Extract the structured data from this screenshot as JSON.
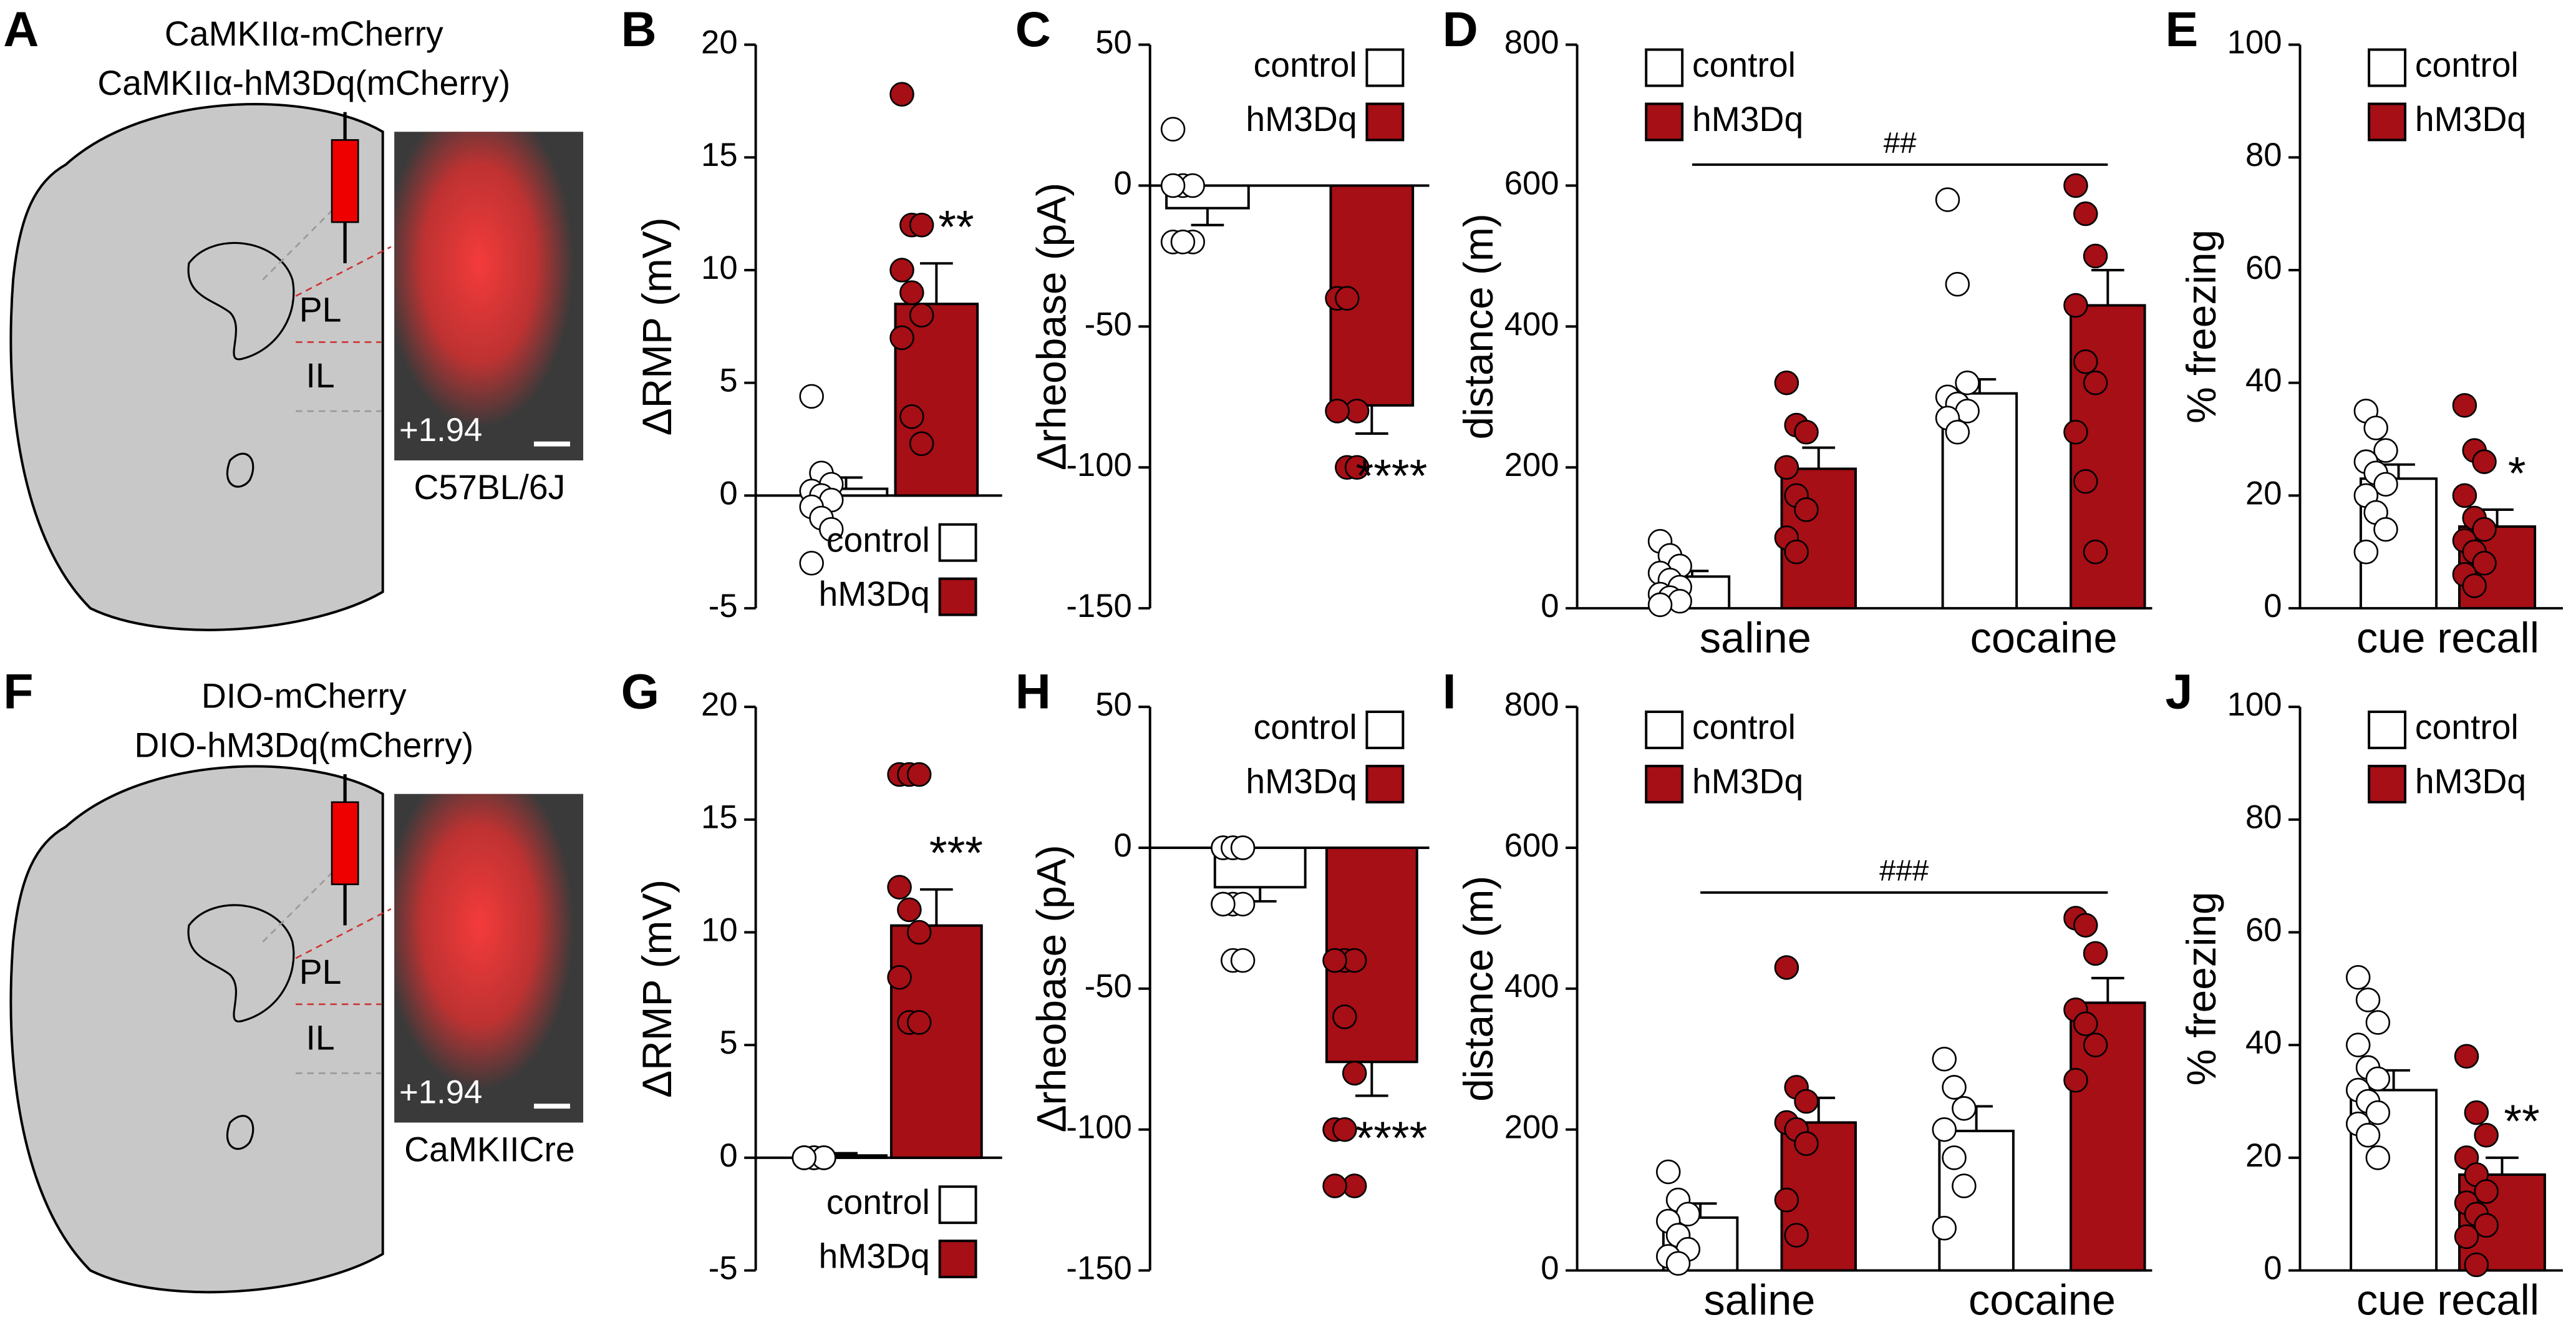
{
  "panels": [
    {
      "letter": "A",
      "lines": [
        "CaMKIIα-mCherry",
        "CaMKIIα-hM3Dq(mCherry)"
      ],
      "regions": [
        "PL",
        "IL"
      ],
      "coordinate": "+1.94",
      "strain": "C57BL/6J"
    },
    {
      "letter": "F",
      "lines": [
        "DIO-mCherry",
        "DIO-hM3Dq(mCherry)"
      ],
      "regions": [
        "PL",
        "IL"
      ],
      "coordinate": "+1.94",
      "strain": "CaMKIICre"
    }
  ],
  "chart_data": [
    {
      "type": "bar",
      "panel": "B",
      "ylabel": "ΔRMP (mV)",
      "ylim": [
        -5,
        20
      ],
      "yticks": [
        -5,
        0,
        5,
        10,
        15,
        20
      ],
      "legend": "lower right",
      "series": [
        {
          "name": "control",
          "color": "#ffffff",
          "values": [
            0.3
          ],
          "errors": [
            0.5
          ],
          "points": [
            [
              4.4,
              1,
              0.5,
              0.2,
              0,
              -0.2,
              -0.5,
              -1,
              -1.5,
              -3
            ]
          ]
        },
        {
          "name": "hM3Dq",
          "color": "#a50f15",
          "values": [
            8.5
          ],
          "errors": [
            1.8
          ],
          "points": [
            [
              17.8,
              12,
              12,
              10,
              9,
              8,
              7,
              3.5,
              2.3
            ]
          ],
          "significance": "**"
        }
      ]
    },
    {
      "type": "bar",
      "panel": "C",
      "ylabel": "Δrheobase (pA)",
      "ylim": [
        -150,
        50
      ],
      "yticks": [
        -150,
        -100,
        -50,
        0,
        50
      ],
      "legend": "upper right",
      "series": [
        {
          "name": "control",
          "color": "#ffffff",
          "values": [
            -8
          ],
          "errors": [
            6
          ],
          "points": [
            [
              20,
              0,
              0,
              0,
              -20,
              -20,
              -20,
              -20
            ]
          ]
        },
        {
          "name": "hM3Dq",
          "color": "#a50f15",
          "values": [
            -78
          ],
          "errors": [
            10
          ],
          "points": [
            [
              -40,
              -40,
              -80,
              -80,
              -100,
              -100
            ]
          ],
          "significance": "****"
        }
      ]
    },
    {
      "type": "bar",
      "panel": "D",
      "ylabel": "distance (m)",
      "ylim": [
        0,
        800
      ],
      "yticks": [
        0,
        200,
        400,
        600,
        800
      ],
      "legend": "upper left",
      "categories": [
        "saline",
        "cocaine"
      ],
      "bracket": "##",
      "series": [
        {
          "name": "control",
          "color": "#ffffff",
          "values": [
            45,
            305
          ],
          "errors": [
            8,
            20
          ],
          "points": [
            [
              95,
              75,
              60,
              50,
              40,
              30,
              20,
              15,
              10,
              5
            ],
            [
              580,
              460,
              320,
              300,
              290,
              280,
              270,
              250
            ]
          ]
        },
        {
          "name": "hM3Dq",
          "color": "#a50f15",
          "values": [
            198,
            430
          ],
          "errors": [
            30,
            50
          ],
          "points": [
            [
              320,
              260,
              250,
              200,
              160,
              140,
              100,
              80
            ],
            [
              600,
              560,
              500,
              430,
              350,
              320,
              250,
              180,
              80
            ]
          ]
        }
      ]
    },
    {
      "type": "bar",
      "panel": "E",
      "ylabel": "% freezing",
      "ylim": [
        0,
        100
      ],
      "yticks": [
        0,
        20,
        40,
        60,
        80,
        100
      ],
      "legend": "upper left",
      "categories": [
        "cue recall"
      ],
      "series": [
        {
          "name": "control",
          "color": "#ffffff",
          "values": [
            23
          ],
          "errors": [
            2.5
          ],
          "points": [
            [
              35,
              32,
              28,
              26,
              24,
              22,
              20,
              17,
              14,
              10
            ]
          ]
        },
        {
          "name": "hM3Dq",
          "color": "#a50f15",
          "values": [
            14.5
          ],
          "errors": [
            3
          ],
          "points": [
            [
              36,
              28,
              26,
              20,
              16,
              14,
              12,
              10,
              8,
              6,
              4
            ]
          ],
          "significance": "*"
        }
      ]
    },
    {
      "type": "bar",
      "panel": "G",
      "ylabel": "ΔRMP (mV)",
      "ylim": [
        -5,
        20
      ],
      "yticks": [
        -5,
        0,
        5,
        10,
        15,
        20
      ],
      "legend": "lower right",
      "series": [
        {
          "name": "control",
          "color": "#ffffff",
          "values": [
            0.1
          ],
          "errors": [
            0.1
          ],
          "points": [
            [
              0,
              0,
              0,
              0,
              0,
              0,
              0,
              0,
              0,
              0
            ]
          ]
        },
        {
          "name": "hM3Dq",
          "color": "#a50f15",
          "values": [
            10.3
          ],
          "errors": [
            1.6
          ],
          "points": [
            [
              17,
              17,
              17,
              12,
              11,
              10,
              8,
              6,
              6
            ]
          ],
          "significance": "***"
        }
      ]
    },
    {
      "type": "bar",
      "panel": "H",
      "ylabel": "Δrheobase (pA)",
      "ylim": [
        -150,
        50
      ],
      "yticks": [
        -150,
        -100,
        -50,
        0,
        50
      ],
      "legend": "upper right",
      "series": [
        {
          "name": "control",
          "color": "#ffffff",
          "values": [
            -14
          ],
          "errors": [
            5
          ],
          "points": [
            [
              0,
              0,
              0,
              0,
              0,
              0,
              -20,
              -20,
              -20,
              -20,
              -40,
              -40
            ]
          ]
        },
        {
          "name": "hM3Dq",
          "color": "#a50f15",
          "values": [
            -76
          ],
          "errors": [
            12
          ],
          "points": [
            [
              -40,
              -40,
              -40,
              -40,
              -60,
              -80,
              -100,
              -100,
              -120,
              -120
            ]
          ],
          "significance": "****"
        }
      ]
    },
    {
      "type": "bar",
      "panel": "I",
      "ylabel": "distance (m)",
      "ylim": [
        0,
        800
      ],
      "yticks": [
        0,
        200,
        400,
        600,
        800
      ],
      "legend": "upper left",
      "categories": [
        "saline",
        "cocaine"
      ],
      "bracket": "###",
      "series": [
        {
          "name": "control",
          "color": "#ffffff",
          "values": [
            75,
            198
          ],
          "errors": [
            20,
            35
          ],
          "points": [
            [
              140,
              100,
              80,
              70,
              50,
              30,
              20,
              10
            ],
            [
              300,
              260,
              230,
              200,
              160,
              120,
              60
            ]
          ]
        },
        {
          "name": "hM3Dq",
          "color": "#a50f15",
          "values": [
            210,
            380
          ],
          "errors": [
            35,
            35
          ],
          "points": [
            [
              430,
              260,
              240,
              210,
              200,
              180,
              100,
              50
            ],
            [
              500,
              490,
              450,
              370,
              350,
              320,
              270
            ]
          ]
        }
      ]
    },
    {
      "type": "bar",
      "panel": "J",
      "ylabel": "% freezing",
      "ylim": [
        0,
        100
      ],
      "yticks": [
        0,
        20,
        40,
        60,
        80,
        100
      ],
      "legend": "upper left",
      "categories": [
        "cue recall"
      ],
      "series": [
        {
          "name": "control",
          "color": "#ffffff",
          "values": [
            32
          ],
          "errors": [
            3.5
          ],
          "points": [
            [
              52,
              48,
              44,
              40,
              36,
              34,
              32,
              30,
              28,
              26,
              24,
              20
            ]
          ]
        },
        {
          "name": "hM3Dq",
          "color": "#a50f15",
          "values": [
            17
          ],
          "errors": [
            3
          ],
          "points": [
            [
              38,
              28,
              24,
              20,
              17,
              14,
              12,
              10,
              8,
              6,
              1
            ]
          ],
          "significance": "**"
        }
      ]
    }
  ]
}
